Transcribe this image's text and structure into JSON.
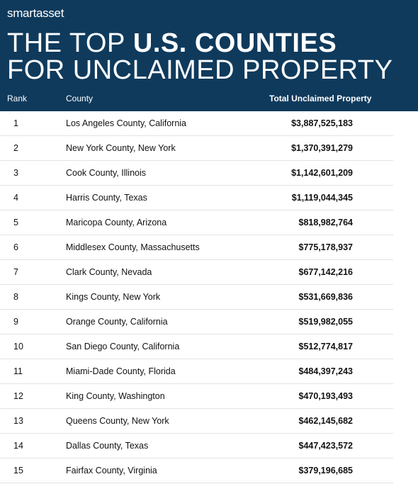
{
  "header": {
    "logo": "smartasset",
    "title_light": "THE TOP",
    "title_bold": "U.S. COUNTIES",
    "title_line2": "FOR UNCLAIMED PROPERTY"
  },
  "table": {
    "columns": [
      "Rank",
      "County",
      "Total Unclaimed Property"
    ],
    "rows": [
      [
        1,
        "Los Angeles County, California",
        "$3,887,525,183"
      ],
      [
        2,
        "New York County, New York",
        "$1,370,391,279"
      ],
      [
        3,
        "Cook County, Illinois",
        "$1,142,601,209"
      ],
      [
        4,
        "Harris County, Texas",
        "$1,119,044,345"
      ],
      [
        5,
        "Maricopa County, Arizona",
        "$818,982,764"
      ],
      [
        6,
        "Middlesex County, Massachusetts",
        "$775,178,937"
      ],
      [
        7,
        "Clark County, Nevada",
        "$677,142,216"
      ],
      [
        8,
        "Kings County, New York",
        "$531,669,836"
      ],
      [
        9,
        "Orange County, California",
        "$519,982,055"
      ],
      [
        10,
        "San Diego County, California",
        "$512,774,817"
      ],
      [
        11,
        "Miami-Dade County, Florida",
        "$484,397,243"
      ],
      [
        12,
        "King County, Washington",
        "$470,193,493"
      ],
      [
        13,
        "Queens County, New York",
        "$462,145,682"
      ],
      [
        14,
        "Dallas County, Texas",
        "$447,423,572"
      ],
      [
        15,
        "Fairfax County, Virginia",
        "$379,196,685"
      ]
    ]
  }
}
